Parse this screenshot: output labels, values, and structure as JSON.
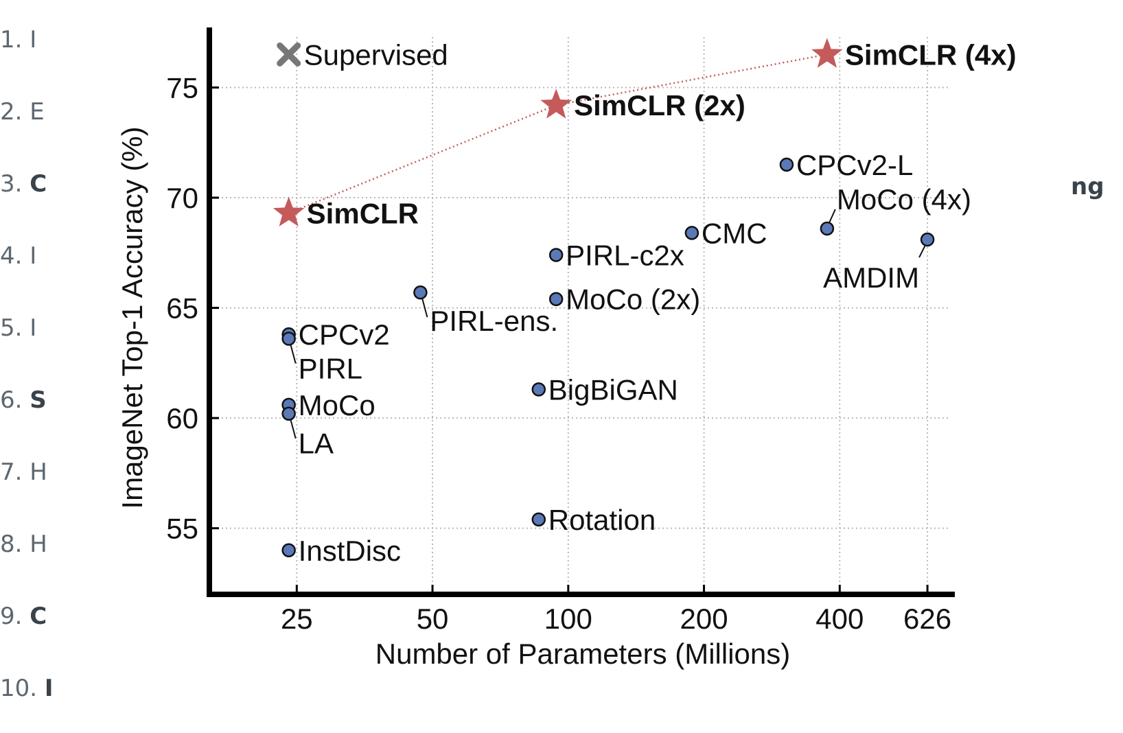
{
  "left_list": [
    {
      "num": "1.",
      "frag": "I",
      "bold": false
    },
    {
      "num": "2.",
      "frag": "E",
      "bold": false
    },
    {
      "num": "3.",
      "frag": "C",
      "bold": true
    },
    {
      "num": "4.",
      "frag": "I",
      "bold": false
    },
    {
      "num": "5.",
      "frag": "I",
      "bold": false
    },
    {
      "num": "6.",
      "frag": "S",
      "bold": true
    },
    {
      "num": "7.",
      "frag": "H",
      "bold": false
    },
    {
      "num": "8.",
      "frag": "H",
      "bold": false
    },
    {
      "num": "9.",
      "frag": "C",
      "bold": true
    },
    {
      "num": "10.",
      "frag": "I",
      "bold": true
    }
  ],
  "right_fragment": "ng",
  "chart_data": {
    "type": "scatter",
    "xlabel": "Number of Parameters (Millions)",
    "ylabel": "ImageNet Top-1 Accuracy (%)",
    "x_scale": "log",
    "x_ticks": [
      25,
      50,
      100,
      200,
      400,
      626
    ],
    "y_ticks": [
      55,
      60,
      65,
      70,
      75
    ],
    "xlim": [
      16,
      720
    ],
    "ylim": [
      52.0,
      77.6
    ],
    "grid": true,
    "colors": {
      "method": "#5b79b8",
      "simclr": "#c45a5a",
      "supervised": "#777777"
    },
    "methods": [
      {
        "name": "CPCv2-L",
        "x": 305,
        "y": 71.5
      },
      {
        "name": "MoCo (4x)",
        "x": 375,
        "y": 68.6
      },
      {
        "name": "AMDIM",
        "x": 626,
        "y": 68.1
      },
      {
        "name": "CMC",
        "x": 188,
        "y": 68.4
      },
      {
        "name": "PIRL-c2x",
        "x": 94,
        "y": 67.4
      },
      {
        "name": "PIRL-ens.",
        "x": 47,
        "y": 65.7
      },
      {
        "name": "MoCo (2x)",
        "x": 94,
        "y": 65.4
      },
      {
        "name": "CPCv2",
        "x": 24,
        "y": 63.8
      },
      {
        "name": "PIRL",
        "x": 24,
        "y": 63.6
      },
      {
        "name": "BigBiGAN",
        "x": 86,
        "y": 61.3
      },
      {
        "name": "MoCo",
        "x": 24,
        "y": 60.6
      },
      {
        "name": "LA",
        "x": 24,
        "y": 60.2
      },
      {
        "name": "Rotation",
        "x": 86,
        "y": 55.4
      },
      {
        "name": "InstDisc",
        "x": 24,
        "y": 54.0
      }
    ],
    "simclr": [
      {
        "name": "SimCLR",
        "x": 24,
        "y": 69.3
      },
      {
        "name": "SimCLR (2x)",
        "x": 94,
        "y": 74.2
      },
      {
        "name": "SimCLR (4x)",
        "x": 375,
        "y": 76.5
      }
    ],
    "supervised": {
      "name": "Supervised",
      "x": 24,
      "y": 76.5
    }
  }
}
